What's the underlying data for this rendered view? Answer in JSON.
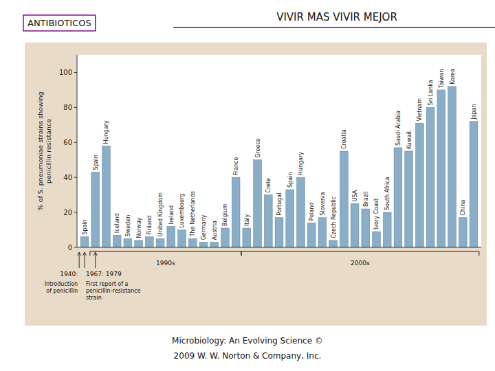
{
  "chart_data": {
    "type": "bar",
    "title": "ANTIBIOTICOS",
    "subtitle": "VIVIR MAS VIVIR MEJOR",
    "ylabel": "% of S. pneumoniae strains showing\npenicillin resistance",
    "categories": [
      "Spain",
      "Spain",
      "Hungary",
      "Iceland",
      "Sweden",
      "Norway",
      "Finland",
      "United Kingdom",
      "Ireland",
      "Luxembourg",
      "The Netherlands",
      "Germany",
      "Austria",
      "Belgium",
      "France",
      "Italy",
      "Greece",
      "Crete",
      "Portugal",
      "Spain",
      "Hungary",
      "Poland",
      "Slovenia",
      "Czech Republic",
      "Croatia",
      "USA",
      "Brazil",
      "Ivory Coast",
      "South Africa",
      "Saudi Arabia",
      "Kuwait",
      "Vietnam",
      "Sri Lanka",
      "Taiwan",
      "Korea",
      "China",
      "Japan"
    ],
    "values": [
      6,
      43,
      58,
      7,
      5,
      4,
      6,
      5,
      12,
      10,
      5,
      3,
      3,
      11,
      40,
      11,
      50,
      30,
      17,
      33,
      40,
      14,
      17,
      4,
      55,
      25,
      22,
      9,
      20,
      57,
      55,
      71,
      80,
      90,
      92,
      17,
      72
    ],
    "color": "#8aaec8",
    "ylim": [
      0,
      110
    ],
    "yticks": [
      0,
      20,
      40,
      60,
      80,
      100
    ],
    "grid": false,
    "annotations": [
      "1940:",
      "1967: 1979",
      "1990s",
      "2000s",
      "Introduction\nof penicillin",
      "First report of a\npenicillin-resistance\nstrain",
      "Microbiology: An Evolving Science    ©",
      "2009 W. W. Norton & Company, Inc."
    ]
  }
}
